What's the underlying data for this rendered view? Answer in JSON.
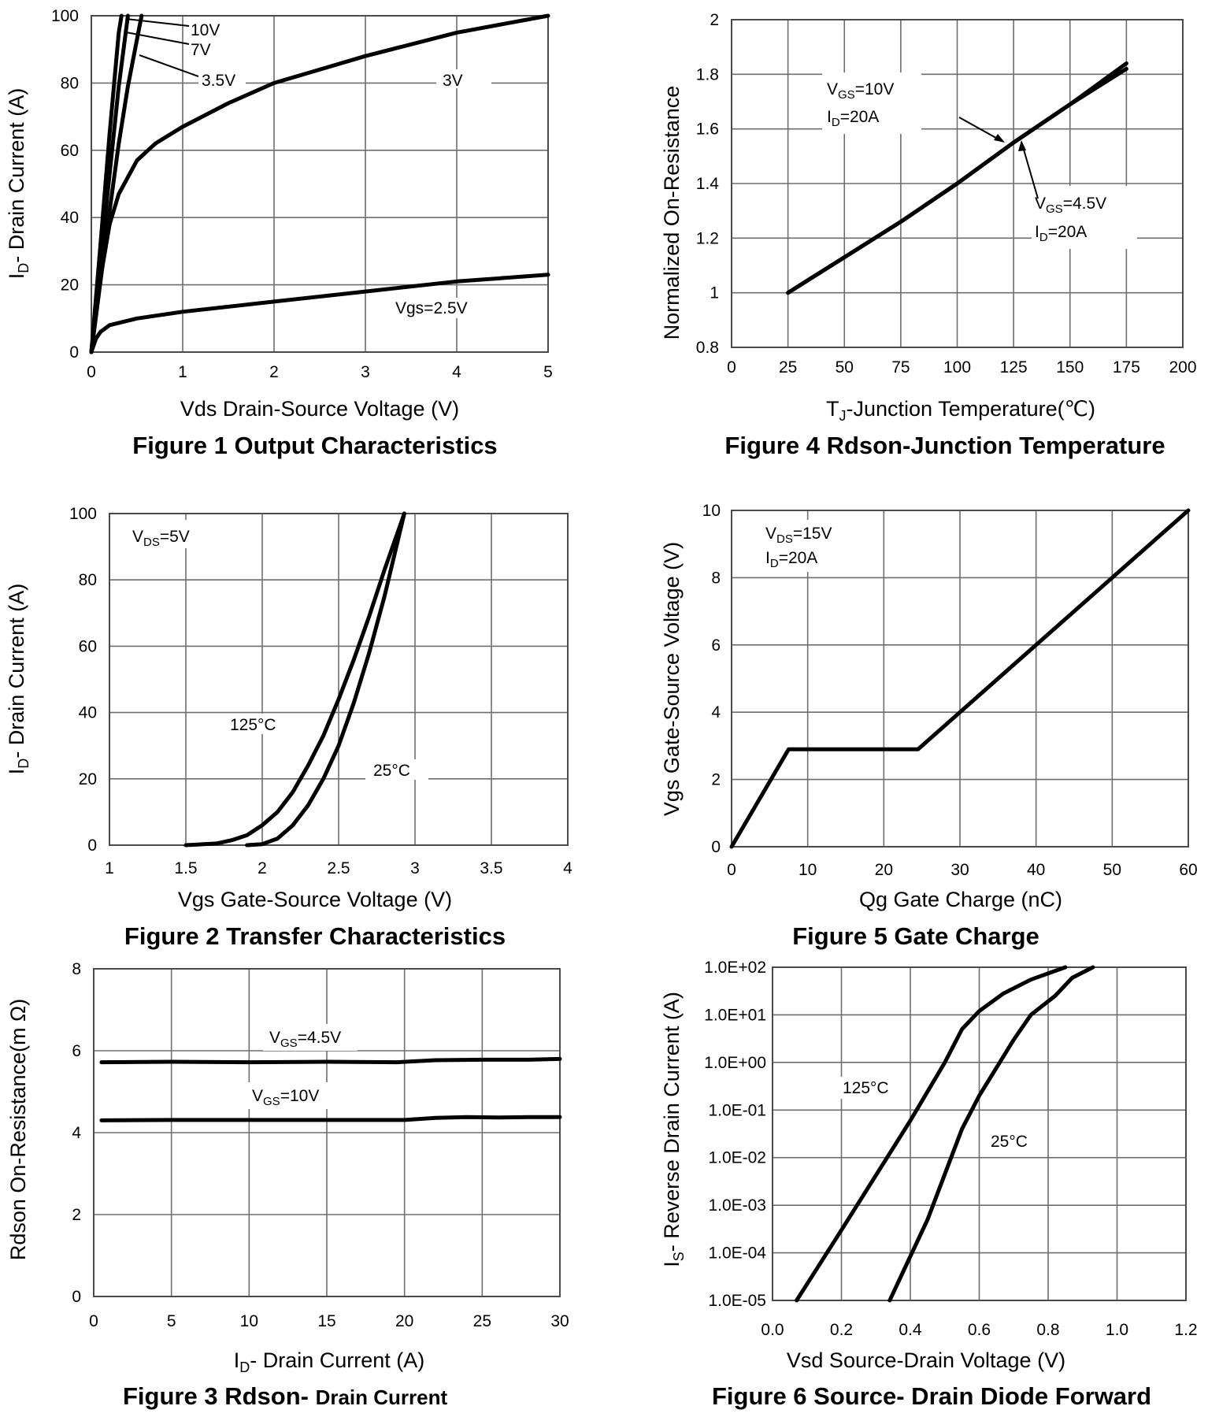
{
  "colors": {
    "curve": "#000000",
    "grid": "#6e6e6e",
    "background": "#ffffff"
  },
  "chart_data": [
    {
      "id": "fig1",
      "type": "line",
      "title": "Figure 1 Output Characteristics",
      "xlabel": "Vds Drain-Source Voltage (V)",
      "ylabel_main": "I",
      "ylabel_sub": "D",
      "ylabel_rest": "- Drain Current (A)",
      "xlim": [
        0,
        5
      ],
      "ylim": [
        0,
        100
      ],
      "xticks": [
        0,
        1,
        2,
        3,
        4,
        5
      ],
      "yticks": [
        0,
        20,
        40,
        60,
        80,
        100
      ],
      "xtick_labels": [
        "0",
        "1",
        "2",
        "3",
        "4",
        "5"
      ],
      "ytick_labels": [
        "0",
        "20",
        "40",
        "60",
        "80",
        "100"
      ],
      "series": [
        {
          "name": "10V",
          "x": [
            0,
            0.1,
            0.2,
            0.3,
            0.33
          ],
          "y": [
            0,
            32,
            65,
            95,
            100
          ]
        },
        {
          "name": "7V",
          "x": [
            0,
            0.1,
            0.2,
            0.3,
            0.4
          ],
          "y": [
            0,
            27,
            53,
            79,
            100
          ]
        },
        {
          "name": "3.5V",
          "x": [
            0,
            0.1,
            0.2,
            0.3,
            0.4,
            0.5,
            0.55
          ],
          "y": [
            0,
            21,
            42,
            62,
            79,
            93,
            100
          ]
        },
        {
          "name": "3V",
          "x": [
            0,
            0.05,
            0.1,
            0.2,
            0.3,
            0.5,
            0.7,
            1,
            1.5,
            2,
            3,
            4,
            5
          ],
          "y": [
            0,
            12,
            22,
            38,
            47,
            57,
            62,
            67,
            74,
            80,
            88,
            95,
            100
          ]
        },
        {
          "name": "Vgs=2.5V",
          "x": [
            0,
            0.05,
            0.1,
            0.2,
            0.5,
            1,
            2,
            3,
            4,
            5
          ],
          "y": [
            0,
            4,
            6,
            8,
            10,
            12,
            15,
            18,
            21,
            23
          ]
        }
      ],
      "annotations": [
        "10V",
        "7V",
        "3.5V",
        "3V",
        "Vgs=2.5V"
      ]
    },
    {
      "id": "fig4",
      "type": "line",
      "title": "Figure 4 Rdson-Junction Temperature",
      "xlabel_main": "T",
      "xlabel_sub": "J",
      "xlabel_rest": "-Junction Temperature(℃)",
      "ylabel": "Normalized On-Resistance",
      "xlim": [
        0,
        200
      ],
      "ylim": [
        0.8,
        2
      ],
      "xticks": [
        0,
        25,
        50,
        75,
        100,
        125,
        150,
        175,
        200
      ],
      "yticks": [
        0.8,
        1,
        1.2,
        1.4,
        1.6,
        1.8,
        2
      ],
      "xtick_labels": [
        "0",
        "25",
        "50",
        "75",
        "100",
        "125",
        "150",
        "175",
        "200"
      ],
      "ytick_labels": [
        "0.8",
        "1",
        "1.2",
        "1.4",
        "1.6",
        "1.8",
        "2"
      ],
      "series": [
        {
          "name": "VGS=10V, ID=20A",
          "x": [
            25,
            50,
            75,
            100,
            125,
            150,
            175
          ],
          "y": [
            1.0,
            1.13,
            1.26,
            1.4,
            1.55,
            1.69,
            1.84
          ]
        },
        {
          "name": "VGS=4.5V, ID=20A",
          "x": [
            25,
            50,
            75,
            100,
            125,
            150,
            175
          ],
          "y": [
            1.0,
            1.13,
            1.26,
            1.4,
            1.55,
            1.69,
            1.82
          ]
        }
      ],
      "annotations": [
        {
          "main": "V",
          "sub": "GS",
          "rest": "=10V"
        },
        {
          "main": "I",
          "sub": "D",
          "rest": "=20A"
        },
        {
          "main": "V",
          "sub": "GS",
          "rest": "=4.5V"
        },
        {
          "main": "I",
          "sub": "D",
          "rest": "=20A"
        }
      ]
    },
    {
      "id": "fig2",
      "type": "line",
      "title": "Figure 2 Transfer Characteristics",
      "xlabel": "Vgs Gate-Source Voltage (V)",
      "ylabel_main": "I",
      "ylabel_sub": "D",
      "ylabel_rest": "- Drain Current (A)",
      "xlim": [
        1,
        4
      ],
      "ylim": [
        0,
        100
      ],
      "xticks": [
        1,
        1.5,
        2,
        2.5,
        3,
        3.5,
        4
      ],
      "yticks": [
        0,
        20,
        40,
        60,
        80,
        100
      ],
      "xtick_labels": [
        "1",
        "1.5",
        "2",
        "2.5",
        "3",
        "3.5",
        "4"
      ],
      "ytick_labels": [
        "0",
        "20",
        "40",
        "60",
        "80",
        "100"
      ],
      "series": [
        {
          "name": "125°C",
          "x": [
            1.5,
            1.7,
            1.8,
            1.9,
            2.0,
            2.1,
            2.2,
            2.3,
            2.4,
            2.5,
            2.6,
            2.7,
            2.8,
            2.93
          ],
          "y": [
            0,
            0.5,
            1.5,
            3,
            6,
            10,
            16,
            24,
            33,
            44,
            56,
            69,
            83,
            100
          ]
        },
        {
          "name": "25°C",
          "x": [
            1.9,
            2.0,
            2.1,
            2.2,
            2.3,
            2.4,
            2.5,
            2.6,
            2.7,
            2.8,
            2.93
          ],
          "y": [
            0,
            0.3,
            2,
            6,
            12,
            20,
            30,
            43,
            58,
            75,
            100
          ]
        }
      ],
      "annotations": [
        {
          "main": "V",
          "sub": "DS",
          "rest": "=5V"
        },
        "125°C",
        "25°C"
      ]
    },
    {
      "id": "fig5",
      "type": "line",
      "title": "Figure 5 Gate Charge",
      "xlabel": "Qg Gate Charge (nC)",
      "ylabel": "Vgs Gate-Source Voltage (V)",
      "xlim": [
        0,
        60
      ],
      "ylim": [
        0,
        10
      ],
      "xticks": [
        0,
        10,
        20,
        30,
        40,
        50,
        60
      ],
      "yticks": [
        0,
        2,
        4,
        6,
        8,
        10
      ],
      "xtick_labels": [
        "0",
        "10",
        "20",
        "30",
        "40",
        "50",
        "60"
      ],
      "ytick_labels": [
        "0",
        "2",
        "4",
        "6",
        "8",
        "10"
      ],
      "series": [
        {
          "name": "VDS=15V, ID=20A",
          "x": [
            0,
            7.5,
            24.5,
            60
          ],
          "y": [
            0,
            2.9,
            2.9,
            10
          ]
        }
      ],
      "annotations": [
        {
          "main": "V",
          "sub": "DS",
          "rest": "=15V"
        },
        {
          "main": "I",
          "sub": "D",
          "rest": "=20A"
        }
      ]
    },
    {
      "id": "fig3",
      "type": "line",
      "title": "Figure 3 Rdson- ",
      "title_small": "Drain Current",
      "xlabel_main": "I",
      "xlabel_sub": "D",
      "xlabel_rest": "- Drain Current (A)",
      "ylabel": "Rdson On-Resistance(m Ω)",
      "xlim": [
        0,
        30
      ],
      "ylim": [
        0,
        8
      ],
      "xticks": [
        0,
        5,
        10,
        15,
        20,
        25,
        30
      ],
      "yticks": [
        0,
        2,
        4,
        6,
        8
      ],
      "xtick_labels": [
        "0",
        "5",
        "10",
        "15",
        "20",
        "25",
        "30"
      ],
      "ytick_labels": [
        "0",
        "2",
        "4",
        "6",
        "8"
      ],
      "series": [
        {
          "name": "VGS=4.5V",
          "x": [
            0.5,
            5,
            10,
            15,
            19.5,
            22,
            25,
            28,
            30
          ],
          "y": [
            5.72,
            5.73,
            5.72,
            5.73,
            5.72,
            5.77,
            5.78,
            5.78,
            5.8
          ]
        },
        {
          "name": "VGS=10V",
          "x": [
            0.5,
            5,
            10,
            15,
            20,
            22,
            24,
            26,
            28,
            30
          ],
          "y": [
            4.3,
            4.31,
            4.31,
            4.31,
            4.31,
            4.36,
            4.38,
            4.37,
            4.38,
            4.38
          ]
        }
      ],
      "annotations": [
        {
          "main": "V",
          "sub": "GS",
          "rest": "=4.5V"
        },
        {
          "main": "V",
          "sub": "GS",
          "rest": "=10V"
        }
      ]
    },
    {
      "id": "fig6",
      "type": "line",
      "scale_y": "log",
      "title": "Figure 6 Source- Drain Diode Forward",
      "xlabel": "Vsd Source-Drain Voltage (V)",
      "ylabel_main": "I",
      "ylabel_sub": "S",
      "ylabel_rest": "- Reverse Drain Current (A)",
      "xlim": [
        0,
        1.2
      ],
      "ylim": [
        1e-05,
        100
      ],
      "xticks": [
        0,
        0.2,
        0.4,
        0.6,
        0.8,
        1.0,
        1.2
      ],
      "yticks": [
        1e-05,
        0.0001,
        0.001,
        0.01,
        0.1,
        1,
        10,
        100
      ],
      "xtick_labels": [
        "0.0",
        "0.2",
        "0.4",
        "0.6",
        "0.8",
        "1.0",
        "1.2"
      ],
      "ytick_labels": [
        "1.0E-05",
        "1.0E-04",
        "1.0E-03",
        "1.0E-02",
        "1.0E-01",
        "1.0E+00",
        "1.0E+01",
        "1.0E+02"
      ],
      "series": [
        {
          "name": "125°C",
          "x": [
            0.07,
            0.2,
            0.4,
            0.5,
            0.55,
            0.6,
            0.67,
            0.75,
            0.85
          ],
          "y": [
            1e-05,
            0.0003,
            0.06,
            1.0,
            5.0,
            12,
            28,
            55,
            100
          ]
        },
        {
          "name": "25°C",
          "x": [
            0.34,
            0.45,
            0.55,
            0.6,
            0.7,
            0.75,
            0.82,
            0.87,
            0.93
          ],
          "y": [
            1e-05,
            0.0005,
            0.04,
            0.2,
            3,
            10,
            25,
            60,
            100
          ]
        }
      ],
      "annotations": [
        "125°C",
        "25°C"
      ]
    }
  ]
}
